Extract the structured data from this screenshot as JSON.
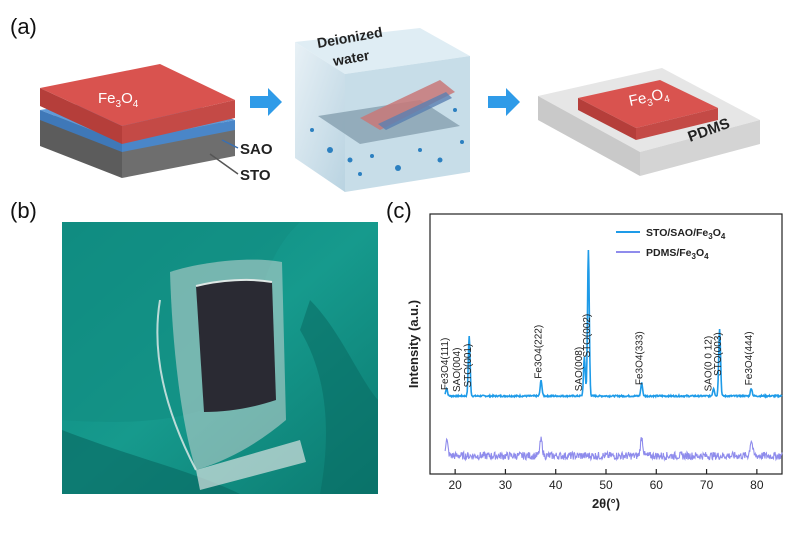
{
  "panels": {
    "a": {
      "label": "(a)"
    },
    "b": {
      "label": "(b)"
    },
    "c": {
      "label": "(c)"
    }
  },
  "schematic": {
    "film_label": "Fe3O4",
    "sao_label": "SAO",
    "sto_label": "STO",
    "water_label_1": "Deionized",
    "water_label_2": "water",
    "pdms_label": "PDMS",
    "colors": {
      "film": "#d9534f",
      "sao": "#4a86c8",
      "sto": "#6e6e6e",
      "arrow": "#2f9be8",
      "cube": "#c7dde8"
    }
  },
  "photo": {
    "colors": {
      "background": "#0f8f84",
      "film": "#2a2a33",
      "substrate": "#c8d6d4"
    }
  },
  "chart_data": {
    "type": "line",
    "xlabel": "2θ(°)",
    "ylabel": "Intensity (a.u.)",
    "xlim": [
      15,
      85
    ],
    "xticks": [
      20,
      30,
      40,
      50,
      60,
      70,
      80
    ],
    "series": [
      {
        "name": "STO/SAO/Fe3O4",
        "color": "#1e9be8",
        "baseline": 0.3,
        "peaks": [
          {
            "x": 18.3,
            "h": 0.03
          },
          {
            "x": 22.8,
            "h": 0.23
          },
          {
            "x": 37.1,
            "h": 0.06
          },
          {
            "x": 45.7,
            "h": 0.15
          },
          {
            "x": 46.5,
            "h": 0.56
          },
          {
            "x": 57.1,
            "h": 0.05
          },
          {
            "x": 71.4,
            "h": 0.03
          },
          {
            "x": 72.6,
            "h": 0.26
          },
          {
            "x": 78.9,
            "h": 0.03
          }
        ]
      },
      {
        "name": "PDMS/Fe3O4",
        "color": "#8f8cec",
        "baseline": 0.07,
        "noise": 0.03,
        "peaks": [
          {
            "x": 18.3,
            "h": 0.06
          },
          {
            "x": 37.1,
            "h": 0.06
          },
          {
            "x": 57.1,
            "h": 0.07
          },
          {
            "x": 78.9,
            "h": 0.06
          }
        ]
      }
    ],
    "annotations": [
      {
        "text": "Fe3O4(111)",
        "x": 18.6
      },
      {
        "text": "SAO(004)",
        "x": 21.0
      },
      {
        "text": "STO(001)",
        "x": 23.2
      },
      {
        "text": "Fe3O4(222)",
        "x": 37.2
      },
      {
        "text": "SAO(008)",
        "x": 45.2
      },
      {
        "text": "STO(002)",
        "x": 46.8
      },
      {
        "text": "Fe3O4(333)",
        "x": 57.3
      },
      {
        "text": "SAO(0 0 12)",
        "x": 71.0
      },
      {
        "text": "STO(003)",
        "x": 72.9
      },
      {
        "text": "Fe3O4(444)",
        "x": 79.0
      }
    ],
    "legend": [
      "STO/SAO/Fe3O4",
      "PDMS/Fe3O4"
    ],
    "legend_position": "top-right"
  }
}
